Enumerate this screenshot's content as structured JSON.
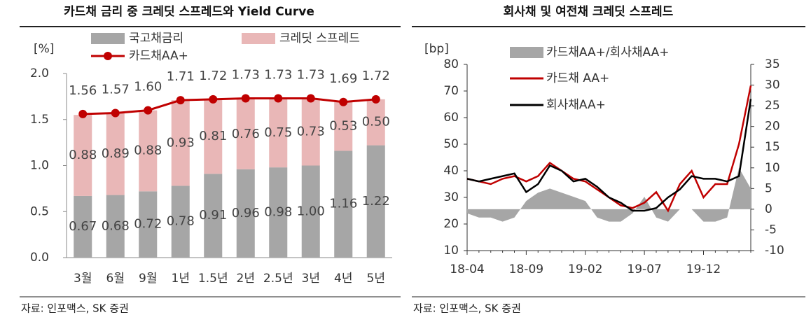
{
  "chart_data": [
    {
      "type": "bar",
      "title": "카드채 금리 중 크레딧 스프레드와 Yield Curve",
      "ylabel": "[%]",
      "source": "자료: 인포맥스, SK 증권",
      "categories": [
        "3월",
        "6월",
        "9월",
        "1년",
        "1.5년",
        "2년",
        "2.5년",
        "3년",
        "4년",
        "5년"
      ],
      "series": [
        {
          "name": "국고채금리",
          "color": "#a6a6a6",
          "stack": true,
          "values": [
            0.67,
            0.68,
            0.72,
            0.78,
            0.91,
            0.96,
            0.98,
            1.0,
            1.16,
            1.22
          ],
          "value_labels": [
            "0.67",
            "0.68",
            "0.72",
            "0.78",
            "0.91",
            "0.96",
            "0.98",
            "1.00",
            "1.16",
            "1.22"
          ]
        },
        {
          "name": "크레딧 스프레드",
          "color": "#e9b7b7",
          "stack": true,
          "values": [
            0.88,
            0.89,
            0.88,
            0.93,
            0.81,
            0.76,
            0.75,
            0.73,
            0.53,
            0.5
          ],
          "value_labels": [
            "0.88",
            "0.89",
            "0.88",
            "0.93",
            "0.81",
            "0.76",
            "0.75",
            "0.73",
            "0.53",
            "0.50"
          ]
        },
        {
          "name": "카드채AA+",
          "color": "#c00000",
          "stack": false,
          "values": [
            1.56,
            1.57,
            1.6,
            1.71,
            1.72,
            1.73,
            1.73,
            1.73,
            1.69,
            1.72
          ],
          "value_labels": [
            "1.56",
            "1.57",
            "1.60",
            "1.71",
            "1.72",
            "1.73",
            "1.73",
            "1.73",
            "1.69",
            "1.72"
          ]
        }
      ],
      "ylim": [
        0,
        2
      ],
      "yticks": [
        {
          "value": 0,
          "label": "0.0"
        },
        0.5,
        {
          "value": 1,
          "label": "1.0"
        },
        1.5,
        {
          "value": 2,
          "label": "2.0"
        }
      ]
    },
    {
      "type": "line",
      "title": "회사채 및 여전채 크레딧 스프레드",
      "ylabel": "[bp]",
      "source": "자료: 인포맥스, SK 증권",
      "x": [
        "18-04",
        null,
        null,
        null,
        null,
        "18-09",
        null,
        null,
        null,
        null,
        "19-02",
        null,
        null,
        null,
        null,
        "19-07",
        null,
        null,
        null,
        null,
        "19-12",
        null,
        null,
        null,
        null
      ],
      "series": [
        {
          "name": "카드채AA+/회사채AA+",
          "color": "#a6a6a6",
          "axis": "y2",
          "area": true,
          "values": [
            -1,
            -2,
            -2,
            -3,
            -2,
            2,
            4,
            5,
            4,
            3,
            2,
            -2,
            -3,
            -3,
            -1,
            3,
            -2,
            -3,
            0,
            0,
            -3,
            -3,
            -2,
            10,
            5
          ]
        },
        {
          "name": "카드채 AA+",
          "color": "#c00000",
          "values": [
            37,
            36,
            35,
            37,
            38,
            36,
            38,
            43,
            40,
            37,
            36,
            33,
            30,
            27,
            26,
            28,
            32,
            25,
            35,
            40,
            30,
            35,
            35,
            50,
            72
          ]
        },
        {
          "name": "회사채AA+",
          "color": "#000000",
          "values": [
            37,
            36,
            37,
            38,
            39,
            32,
            35,
            42,
            40,
            36,
            37,
            34,
            30,
            28,
            25,
            25,
            26,
            30,
            33,
            38,
            37,
            37,
            36,
            38,
            67
          ]
        }
      ],
      "ylim": [
        10,
        80
      ],
      "yticks": [
        10,
        20,
        30,
        40,
        50,
        60,
        70,
        80
      ],
      "y2lim": [
        -10,
        35
      ],
      "y2ticks": [
        -10,
        -5,
        0,
        5,
        10,
        15,
        20,
        25,
        30,
        35
      ]
    }
  ]
}
